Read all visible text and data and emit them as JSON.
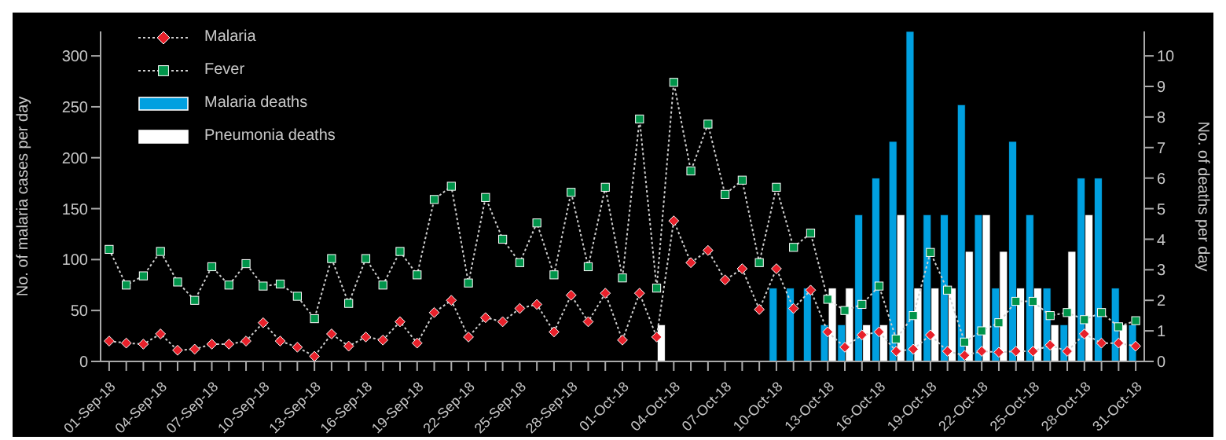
{
  "chart_data": {
    "type": "line",
    "ylabel": "No. of malaria cases per day",
    "y2label": "No. of deaths per day",
    "categories": [
      "01-Sep-18",
      null,
      null,
      "04-Sep-18",
      null,
      null,
      "07-Sep-18",
      null,
      null,
      "10-Sep-18",
      null,
      null,
      "13-Sep-18",
      null,
      null,
      "16-Sep-18",
      null,
      null,
      "19-Sep-18",
      null,
      null,
      "22-Sep-18",
      null,
      null,
      "25-Sep-18",
      null,
      null,
      "28-Sep-18",
      null,
      null,
      "01-Oct-18",
      null,
      null,
      "04-Oct-18",
      null,
      null,
      "07-Oct-18",
      null,
      null,
      "10-Oct-18",
      null,
      null,
      "13-Oct-18",
      null,
      null,
      "16-Oct-18",
      null,
      null,
      "19-Oct-18",
      null,
      null,
      "22-Oct-18",
      null,
      null,
      "25-Oct-18",
      null,
      null,
      "28-Oct-18",
      null,
      null,
      "31-Oct-18"
    ],
    "series": [
      {
        "name": "Malaria",
        "marker": "diamond",
        "color": "#e8202a",
        "values": [
          20,
          18,
          17,
          27,
          11,
          12,
          17,
          17,
          20,
          38,
          20,
          14,
          5,
          27,
          15,
          24,
          21,
          39,
          18,
          48,
          60,
          24,
          43,
          39,
          52,
          56,
          29,
          65,
          39,
          67,
          21,
          67,
          24,
          138,
          97,
          109,
          80,
          91,
          51,
          91,
          52,
          70,
          29,
          14,
          26,
          29,
          10,
          12,
          26,
          10,
          6,
          10,
          9,
          10,
          10,
          16,
          10,
          27,
          18,
          18,
          15
        ]
      },
      {
        "name": "Fever",
        "marker": "square",
        "color": "#00944a",
        "values": [
          110,
          75,
          84,
          108,
          78,
          60,
          93,
          75,
          96,
          74,
          76,
          64,
          42,
          101,
          57,
          101,
          75,
          108,
          85,
          159,
          172,
          77,
          161,
          120,
          97,
          136,
          85,
          166,
          93,
          171,
          82,
          238,
          72,
          274,
          187,
          233,
          164,
          178,
          97,
          171,
          112,
          126,
          61,
          50,
          56,
          74,
          22,
          45,
          107,
          70,
          19,
          30,
          38,
          59,
          59,
          45,
          48,
          41,
          48,
          34,
          40
        ]
      },
      {
        "name": "Malaria deaths",
        "type": "bar",
        "axis": "y2",
        "color": "#00a0e0",
        "values": [
          null,
          null,
          null,
          null,
          null,
          null,
          null,
          null,
          null,
          null,
          null,
          null,
          null,
          null,
          null,
          null,
          null,
          null,
          null,
          null,
          null,
          null,
          null,
          null,
          null,
          null,
          null,
          null,
          null,
          null,
          null,
          null,
          null,
          null,
          null,
          null,
          null,
          null,
          null,
          2.4,
          2.4,
          2.4,
          1.2,
          1.2,
          4.8,
          6,
          7.2,
          10.8,
          4.8,
          4.8,
          8.4,
          4.8,
          2.4,
          7.2,
          4.8,
          2.4,
          1.2,
          6,
          6,
          2.4,
          1.2
        ]
      },
      {
        "name": "Pneumonia deaths",
        "type": "bar",
        "axis": "y2",
        "color": "#ffffff",
        "values": [
          null,
          null,
          null,
          null,
          null,
          null,
          null,
          null,
          null,
          null,
          null,
          null,
          null,
          null,
          null,
          null,
          null,
          null,
          null,
          null,
          null,
          null,
          null,
          null,
          null,
          null,
          null,
          null,
          null,
          null,
          null,
          null,
          1.2,
          null,
          null,
          null,
          null,
          null,
          null,
          null,
          null,
          null,
          2.4,
          2.4,
          1.2,
          1.2,
          4.8,
          2.4,
          2.4,
          2.4,
          3.6,
          4.8,
          3.6,
          2.4,
          2.4,
          1.2,
          3.6,
          4.8,
          null,
          1.2,
          null
        ]
      }
    ],
    "ylim": [
      0,
      324
    ],
    "yticks": [
      0,
      50,
      100,
      150,
      200,
      250,
      300
    ],
    "y2lim": [
      0,
      10.8
    ],
    "y2ticks": [
      0,
      1,
      2,
      3,
      4,
      5,
      6,
      7,
      8,
      9,
      10
    ],
    "line_style": "dotted",
    "legend": "top left"
  }
}
